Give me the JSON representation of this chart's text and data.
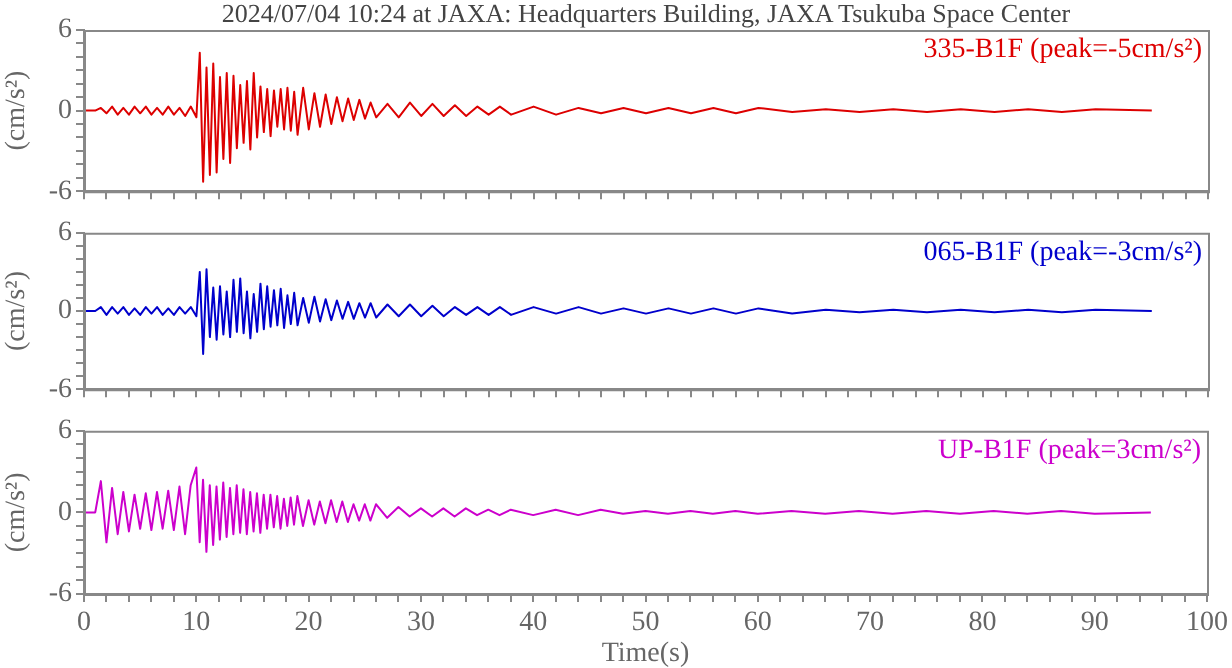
{
  "chart_data": [
    {
      "type": "line",
      "title": "2024/07/04 10:24 at JAXA: Headquarters Building, JAXA Tsukuba Space Center",
      "ylabel": "(cm/s²)",
      "marker": "none",
      "tick_labels": "y",
      "x": [
        0,
        1,
        1.5,
        2,
        2.5,
        3,
        3.5,
        4,
        4.5,
        5,
        5.5,
        6,
        6.5,
        7,
        7.5,
        8,
        8.5,
        9,
        9.5,
        10,
        10.3,
        10.6,
        10.9,
        11.2,
        11.5,
        11.8,
        12.1,
        12.4,
        12.7,
        13,
        13.3,
        13.6,
        13.9,
        14.2,
        14.5,
        14.8,
        15.1,
        15.4,
        15.7,
        16,
        16.3,
        16.6,
        16.9,
        17.2,
        17.5,
        17.8,
        18.1,
        18.4,
        18.7,
        19,
        19.5,
        20,
        20.5,
        21,
        21.5,
        22,
        22.5,
        23,
        23.5,
        24,
        24.5,
        25,
        25.5,
        26,
        27,
        28,
        29,
        30,
        31,
        32,
        33,
        34,
        35,
        36,
        37,
        38,
        40,
        42,
        44,
        46,
        48,
        50,
        52,
        54,
        56,
        58,
        60,
        63,
        66,
        69,
        72,
        75,
        78,
        81,
        84,
        87,
        90,
        95
      ],
      "series": [
        {
          "name": "335-B1F (peak=-5cm/s²)",
          "color": "#dd0000",
          "values": [
            0,
            0,
            0.2,
            -0.2,
            0.3,
            -0.3,
            0.2,
            -0.3,
            0.3,
            -0.2,
            0.3,
            -0.3,
            0.2,
            -0.3,
            0.3,
            -0.3,
            0.2,
            -0.4,
            0.3,
            -0.5,
            4.3,
            -5.3,
            3.2,
            -4.8,
            3.5,
            -4.6,
            2.5,
            -3.6,
            2.8,
            -3.9,
            2.6,
            -2.8,
            1.9,
            -2.4,
            2.2,
            -2.9,
            2.8,
            -2.0,
            1.8,
            -1.6,
            1.6,
            -1.9,
            1.5,
            -1.2,
            1.6,
            -1.4,
            1.7,
            -1.5,
            1.4,
            -1.8,
            1.7,
            -1.4,
            1.3,
            -1.2,
            1.2,
            -1.0,
            1.0,
            -0.8,
            0.9,
            -0.7,
            0.8,
            -0.6,
            0.6,
            -0.5,
            0.5,
            -0.5,
            0.6,
            -0.4,
            0.5,
            -0.4,
            0.4,
            -0.4,
            0.3,
            -0.3,
            0.3,
            -0.3,
            0.3,
            -0.3,
            0.2,
            -0.2,
            0.2,
            -0.2,
            0.2,
            -0.2,
            0.2,
            -0.2,
            0.2,
            -0.1,
            0.1,
            -0.1,
            0.1,
            -0.1,
            0.1,
            -0.1,
            0.1,
            -0.1,
            0.1,
            0
          ]
        }
      ],
      "xlim": [
        0,
        100
      ],
      "xticks": [
        {
          "value": 0,
          "label": null
        },
        {
          "value": 2,
          "label": null
        },
        {
          "value": 4,
          "label": null
        },
        {
          "value": 6,
          "label": null
        },
        {
          "value": 8,
          "label": null
        },
        {
          "value": 10,
          "label": null
        },
        {
          "value": 12,
          "label": null
        },
        {
          "value": 14,
          "label": null
        },
        {
          "value": 16,
          "label": null
        },
        {
          "value": 18,
          "label": null
        },
        {
          "value": 20,
          "label": null
        },
        {
          "value": 22,
          "label": null
        },
        {
          "value": 24,
          "label": null
        },
        {
          "value": 26,
          "label": null
        },
        {
          "value": 28,
          "label": null
        },
        {
          "value": 30,
          "label": null
        },
        {
          "value": 32,
          "label": null
        },
        {
          "value": 34,
          "label": null
        },
        {
          "value": 36,
          "label": null
        },
        {
          "value": 38,
          "label": null
        },
        {
          "value": 40,
          "label": null
        },
        {
          "value": 42,
          "label": null
        },
        {
          "value": 44,
          "label": null
        },
        {
          "value": 46,
          "label": null
        },
        {
          "value": 48,
          "label": null
        },
        {
          "value": 50,
          "label": null
        },
        {
          "value": 52,
          "label": null
        },
        {
          "value": 54,
          "label": null
        },
        {
          "value": 56,
          "label": null
        },
        {
          "value": 58,
          "label": null
        },
        {
          "value": 60,
          "label": null
        },
        {
          "value": 62,
          "label": null
        },
        {
          "value": 64,
          "label": null
        },
        {
          "value": 66,
          "label": null
        },
        {
          "value": 68,
          "label": null
        },
        {
          "value": 70,
          "label": null
        },
        {
          "value": 72,
          "label": null
        },
        {
          "value": 74,
          "label": null
        },
        {
          "value": 76,
          "label": null
        },
        {
          "value": 78,
          "label": null
        },
        {
          "value": 80,
          "label": null
        },
        {
          "value": 82,
          "label": null
        },
        {
          "value": 84,
          "label": null
        },
        {
          "value": 86,
          "label": null
        },
        {
          "value": 88,
          "label": null
        },
        {
          "value": 90,
          "label": null
        },
        {
          "value": 92,
          "label": null
        },
        {
          "value": 94,
          "label": null
        },
        {
          "value": 96,
          "label": null
        },
        {
          "value": 98,
          "label": null
        },
        {
          "value": 100,
          "label": null
        }
      ],
      "ylim": [
        -6,
        6
      ],
      "yticks": [
        -6,
        {
          "value": -5,
          "label": null
        },
        {
          "value": -4,
          "label": null
        },
        {
          "value": -3,
          "label": null
        },
        {
          "value": -2,
          "label": null
        },
        {
          "value": -1,
          "label": null
        },
        0,
        {
          "value": 1,
          "label": null
        },
        {
          "value": 2,
          "label": null
        },
        {
          "value": 3,
          "label": null
        },
        {
          "value": 4,
          "label": null
        },
        {
          "value": 5,
          "label": null
        },
        6
      ]
    },
    {
      "type": "line",
      "ylabel": "(cm/s²)",
      "marker": "none",
      "tick_labels": "y",
      "x": [
        0,
        1,
        1.5,
        2,
        2.5,
        3,
        3.5,
        4,
        4.5,
        5,
        5.5,
        6,
        6.5,
        7,
        7.5,
        8,
        8.5,
        9,
        9.5,
        10,
        10.3,
        10.6,
        10.9,
        11.2,
        11.5,
        11.8,
        12.1,
        12.4,
        12.7,
        13,
        13.3,
        13.6,
        13.9,
        14.2,
        14.5,
        14.8,
        15.1,
        15.4,
        15.7,
        16,
        16.3,
        16.6,
        16.9,
        17.2,
        17.5,
        17.8,
        18.1,
        18.4,
        18.7,
        19,
        19.5,
        20,
        20.5,
        21,
        21.5,
        22,
        22.5,
        23,
        23.5,
        24,
        24.5,
        25,
        25.5,
        26,
        27,
        28,
        29,
        30,
        31,
        32,
        33,
        34,
        35,
        36,
        37,
        38,
        40,
        42,
        44,
        46,
        48,
        50,
        52,
        54,
        56,
        58,
        60,
        63,
        66,
        69,
        72,
        75,
        78,
        81,
        84,
        87,
        90,
        95
      ],
      "series": [
        {
          "name": "065-B1F (peak=-3cm/s²)",
          "color": "#0000cc",
          "values": [
            0,
            0,
            0.3,
            -0.3,
            0.3,
            -0.2,
            0.3,
            -0.3,
            0.2,
            -0.3,
            0.3,
            -0.2,
            0.3,
            -0.3,
            0.2,
            -0.3,
            0.3,
            -0.2,
            0.3,
            -0.4,
            3.0,
            -3.3,
            3.2,
            -2.0,
            1.8,
            -2.2,
            1.9,
            -1.8,
            1.5,
            -2.0,
            2.4,
            -1.6,
            2.5,
            -1.7,
            1.5,
            -2.1,
            1.3,
            -1.6,
            2.1,
            -1.4,
            1.9,
            -1.2,
            1.6,
            -1.1,
            1.7,
            -1.3,
            1.2,
            -1.0,
            1.4,
            -1.1,
            1.0,
            -0.9,
            1.1,
            -0.8,
            0.9,
            -0.7,
            0.8,
            -0.6,
            0.7,
            -0.6,
            0.6,
            -0.5,
            0.6,
            -0.5,
            0.5,
            -0.4,
            0.5,
            -0.4,
            0.4,
            -0.4,
            0.3,
            -0.3,
            0.3,
            -0.3,
            0.3,
            -0.3,
            0.3,
            -0.2,
            0.3,
            -0.2,
            0.2,
            -0.2,
            0.2,
            -0.2,
            0.2,
            -0.2,
            0.2,
            -0.2,
            0.1,
            -0.1,
            0.1,
            -0.1,
            0.1,
            -0.1,
            0.1,
            -0.1,
            0.1,
            0
          ]
        }
      ],
      "xlim": [
        0,
        100
      ],
      "xticks": [
        {
          "value": 0,
          "label": null
        },
        {
          "value": 2,
          "label": null
        },
        {
          "value": 4,
          "label": null
        },
        {
          "value": 6,
          "label": null
        },
        {
          "value": 8,
          "label": null
        },
        {
          "value": 10,
          "label": null
        },
        {
          "value": 12,
          "label": null
        },
        {
          "value": 14,
          "label": null
        },
        {
          "value": 16,
          "label": null
        },
        {
          "value": 18,
          "label": null
        },
        {
          "value": 20,
          "label": null
        },
        {
          "value": 22,
          "label": null
        },
        {
          "value": 24,
          "label": null
        },
        {
          "value": 26,
          "label": null
        },
        {
          "value": 28,
          "label": null
        },
        {
          "value": 30,
          "label": null
        },
        {
          "value": 32,
          "label": null
        },
        {
          "value": 34,
          "label": null
        },
        {
          "value": 36,
          "label": null
        },
        {
          "value": 38,
          "label": null
        },
        {
          "value": 40,
          "label": null
        },
        {
          "value": 42,
          "label": null
        },
        {
          "value": 44,
          "label": null
        },
        {
          "value": 46,
          "label": null
        },
        {
          "value": 48,
          "label": null
        },
        {
          "value": 50,
          "label": null
        },
        {
          "value": 52,
          "label": null
        },
        {
          "value": 54,
          "label": null
        },
        {
          "value": 56,
          "label": null
        },
        {
          "value": 58,
          "label": null
        },
        {
          "value": 60,
          "label": null
        },
        {
          "value": 62,
          "label": null
        },
        {
          "value": 64,
          "label": null
        },
        {
          "value": 66,
          "label": null
        },
        {
          "value": 68,
          "label": null
        },
        {
          "value": 70,
          "label": null
        },
        {
          "value": 72,
          "label": null
        },
        {
          "value": 74,
          "label": null
        },
        {
          "value": 76,
          "label": null
        },
        {
          "value": 78,
          "label": null
        },
        {
          "value": 80,
          "label": null
        },
        {
          "value": 82,
          "label": null
        },
        {
          "value": 84,
          "label": null
        },
        {
          "value": 86,
          "label": null
        },
        {
          "value": 88,
          "label": null
        },
        {
          "value": 90,
          "label": null
        },
        {
          "value": 92,
          "label": null
        },
        {
          "value": 94,
          "label": null
        },
        {
          "value": 96,
          "label": null
        },
        {
          "value": 98,
          "label": null
        },
        {
          "value": 100,
          "label": null
        }
      ],
      "ylim": [
        -6,
        6
      ],
      "yticks": [
        -6,
        {
          "value": -5,
          "label": null
        },
        {
          "value": -4,
          "label": null
        },
        {
          "value": -3,
          "label": null
        },
        {
          "value": -2,
          "label": null
        },
        {
          "value": -1,
          "label": null
        },
        0,
        {
          "value": 1,
          "label": null
        },
        {
          "value": 2,
          "label": null
        },
        {
          "value": 3,
          "label": null
        },
        {
          "value": 4,
          "label": null
        },
        {
          "value": 5,
          "label": null
        },
        6
      ]
    },
    {
      "type": "line",
      "xlabel": "Time(s)",
      "ylabel": "(cm/s²)",
      "marker": "none",
      "x": [
        0,
        1,
        1.5,
        2,
        2.5,
        3,
        3.5,
        4,
        4.5,
        5,
        5.5,
        6,
        6.5,
        7,
        7.5,
        8,
        8.5,
        9,
        9.5,
        10,
        10.3,
        10.6,
        10.9,
        11.2,
        11.5,
        11.8,
        12.1,
        12.4,
        12.7,
        13,
        13.3,
        13.6,
        13.9,
        14.2,
        14.5,
        14.8,
        15.1,
        15.4,
        15.7,
        16,
        16.3,
        16.6,
        16.9,
        17.2,
        17.5,
        17.8,
        18.1,
        18.4,
        18.7,
        19,
        19.5,
        20,
        20.5,
        21,
        21.5,
        22,
        22.5,
        23,
        23.5,
        24,
        24.5,
        25,
        25.5,
        26,
        27,
        28,
        29,
        30,
        31,
        32,
        33,
        34,
        35,
        36,
        37,
        38,
        40,
        42,
        44,
        46,
        48,
        50,
        52,
        54,
        56,
        58,
        60,
        63,
        66,
        69,
        72,
        75,
        78,
        81,
        84,
        87,
        90,
        95
      ],
      "series": [
        {
          "name": "UP-B1F (peak=3cm/s²)",
          "color": "#cc00cc",
          "values": [
            0,
            0,
            2.3,
            -2.2,
            1.8,
            -1.6,
            1.5,
            -1.4,
            1.3,
            -1.2,
            1.4,
            -1.3,
            1.5,
            -1.2,
            1.6,
            -1.3,
            1.9,
            -1.6,
            2.0,
            3.3,
            -2.2,
            2.4,
            -2.9,
            2.0,
            -2.4,
            1.9,
            -2.0,
            2.2,
            -1.8,
            1.8,
            -1.6,
            2.0,
            -1.5,
            1.7,
            -1.6,
            1.5,
            -1.4,
            1.4,
            -1.5,
            1.3,
            -1.2,
            1.3,
            -1.1,
            1.2,
            -1.2,
            1.0,
            -1.0,
            1.1,
            -0.9,
            1.2,
            -1.0,
            0.9,
            -0.9,
            0.8,
            -0.8,
            0.9,
            -0.7,
            0.8,
            -0.7,
            0.6,
            -0.6,
            0.6,
            -0.6,
            0.6,
            -0.4,
            0.4,
            -0.3,
            0.3,
            -0.3,
            0.3,
            -0.3,
            0.3,
            -0.2,
            0.2,
            -0.2,
            0.2,
            -0.2,
            0.2,
            -0.2,
            0.2,
            -0.1,
            0.1,
            -0.1,
            0.1,
            -0.1,
            0.1,
            -0.1,
            0.1,
            -0.1,
            0.1,
            -0.1,
            0.1,
            -0.1,
            0.1,
            -0.1,
            0.1,
            -0.1,
            0
          ]
        }
      ],
      "xlim": [
        0,
        100
      ],
      "xticks": [
        0,
        {
          "value": 2,
          "label": null
        },
        {
          "value": 4,
          "label": null
        },
        {
          "value": 6,
          "label": null
        },
        {
          "value": 8,
          "label": null
        },
        10,
        {
          "value": 12,
          "label": null
        },
        {
          "value": 14,
          "label": null
        },
        {
          "value": 16,
          "label": null
        },
        {
          "value": 18,
          "label": null
        },
        20,
        {
          "value": 22,
          "label": null
        },
        {
          "value": 24,
          "label": null
        },
        {
          "value": 26,
          "label": null
        },
        {
          "value": 28,
          "label": null
        },
        30,
        {
          "value": 32,
          "label": null
        },
        {
          "value": 34,
          "label": null
        },
        {
          "value": 36,
          "label": null
        },
        {
          "value": 38,
          "label": null
        },
        40,
        {
          "value": 42,
          "label": null
        },
        {
          "value": 44,
          "label": null
        },
        {
          "value": 46,
          "label": null
        },
        {
          "value": 48,
          "label": null
        },
        50,
        {
          "value": 52,
          "label": null
        },
        {
          "value": 54,
          "label": null
        },
        {
          "value": 56,
          "label": null
        },
        {
          "value": 58,
          "label": null
        },
        60,
        {
          "value": 62,
          "label": null
        },
        {
          "value": 64,
          "label": null
        },
        {
          "value": 66,
          "label": null
        },
        {
          "value": 68,
          "label": null
        },
        70,
        {
          "value": 72,
          "label": null
        },
        {
          "value": 74,
          "label": null
        },
        {
          "value": 76,
          "label": null
        },
        {
          "value": 78,
          "label": null
        },
        80,
        {
          "value": 82,
          "label": null
        },
        {
          "value": 84,
          "label": null
        },
        {
          "value": 86,
          "label": null
        },
        {
          "value": 88,
          "label": null
        },
        90,
        {
          "value": 92,
          "label": null
        },
        {
          "value": 94,
          "label": null
        },
        {
          "value": 96,
          "label": null
        },
        {
          "value": 98,
          "label": null
        },
        100
      ],
      "ylim": [
        -6,
        6
      ],
      "yticks": [
        -6,
        {
          "value": -5,
          "label": null
        },
        {
          "value": -4,
          "label": null
        },
        {
          "value": -3,
          "label": null
        },
        {
          "value": -2,
          "label": null
        },
        {
          "value": -1,
          "label": null
        },
        0,
        {
          "value": 1,
          "label": null
        },
        {
          "value": 2,
          "label": null
        },
        {
          "value": 3,
          "label": null
        },
        {
          "value": 4,
          "label": null
        },
        {
          "value": 5,
          "label": null
        },
        6
      ]
    }
  ]
}
